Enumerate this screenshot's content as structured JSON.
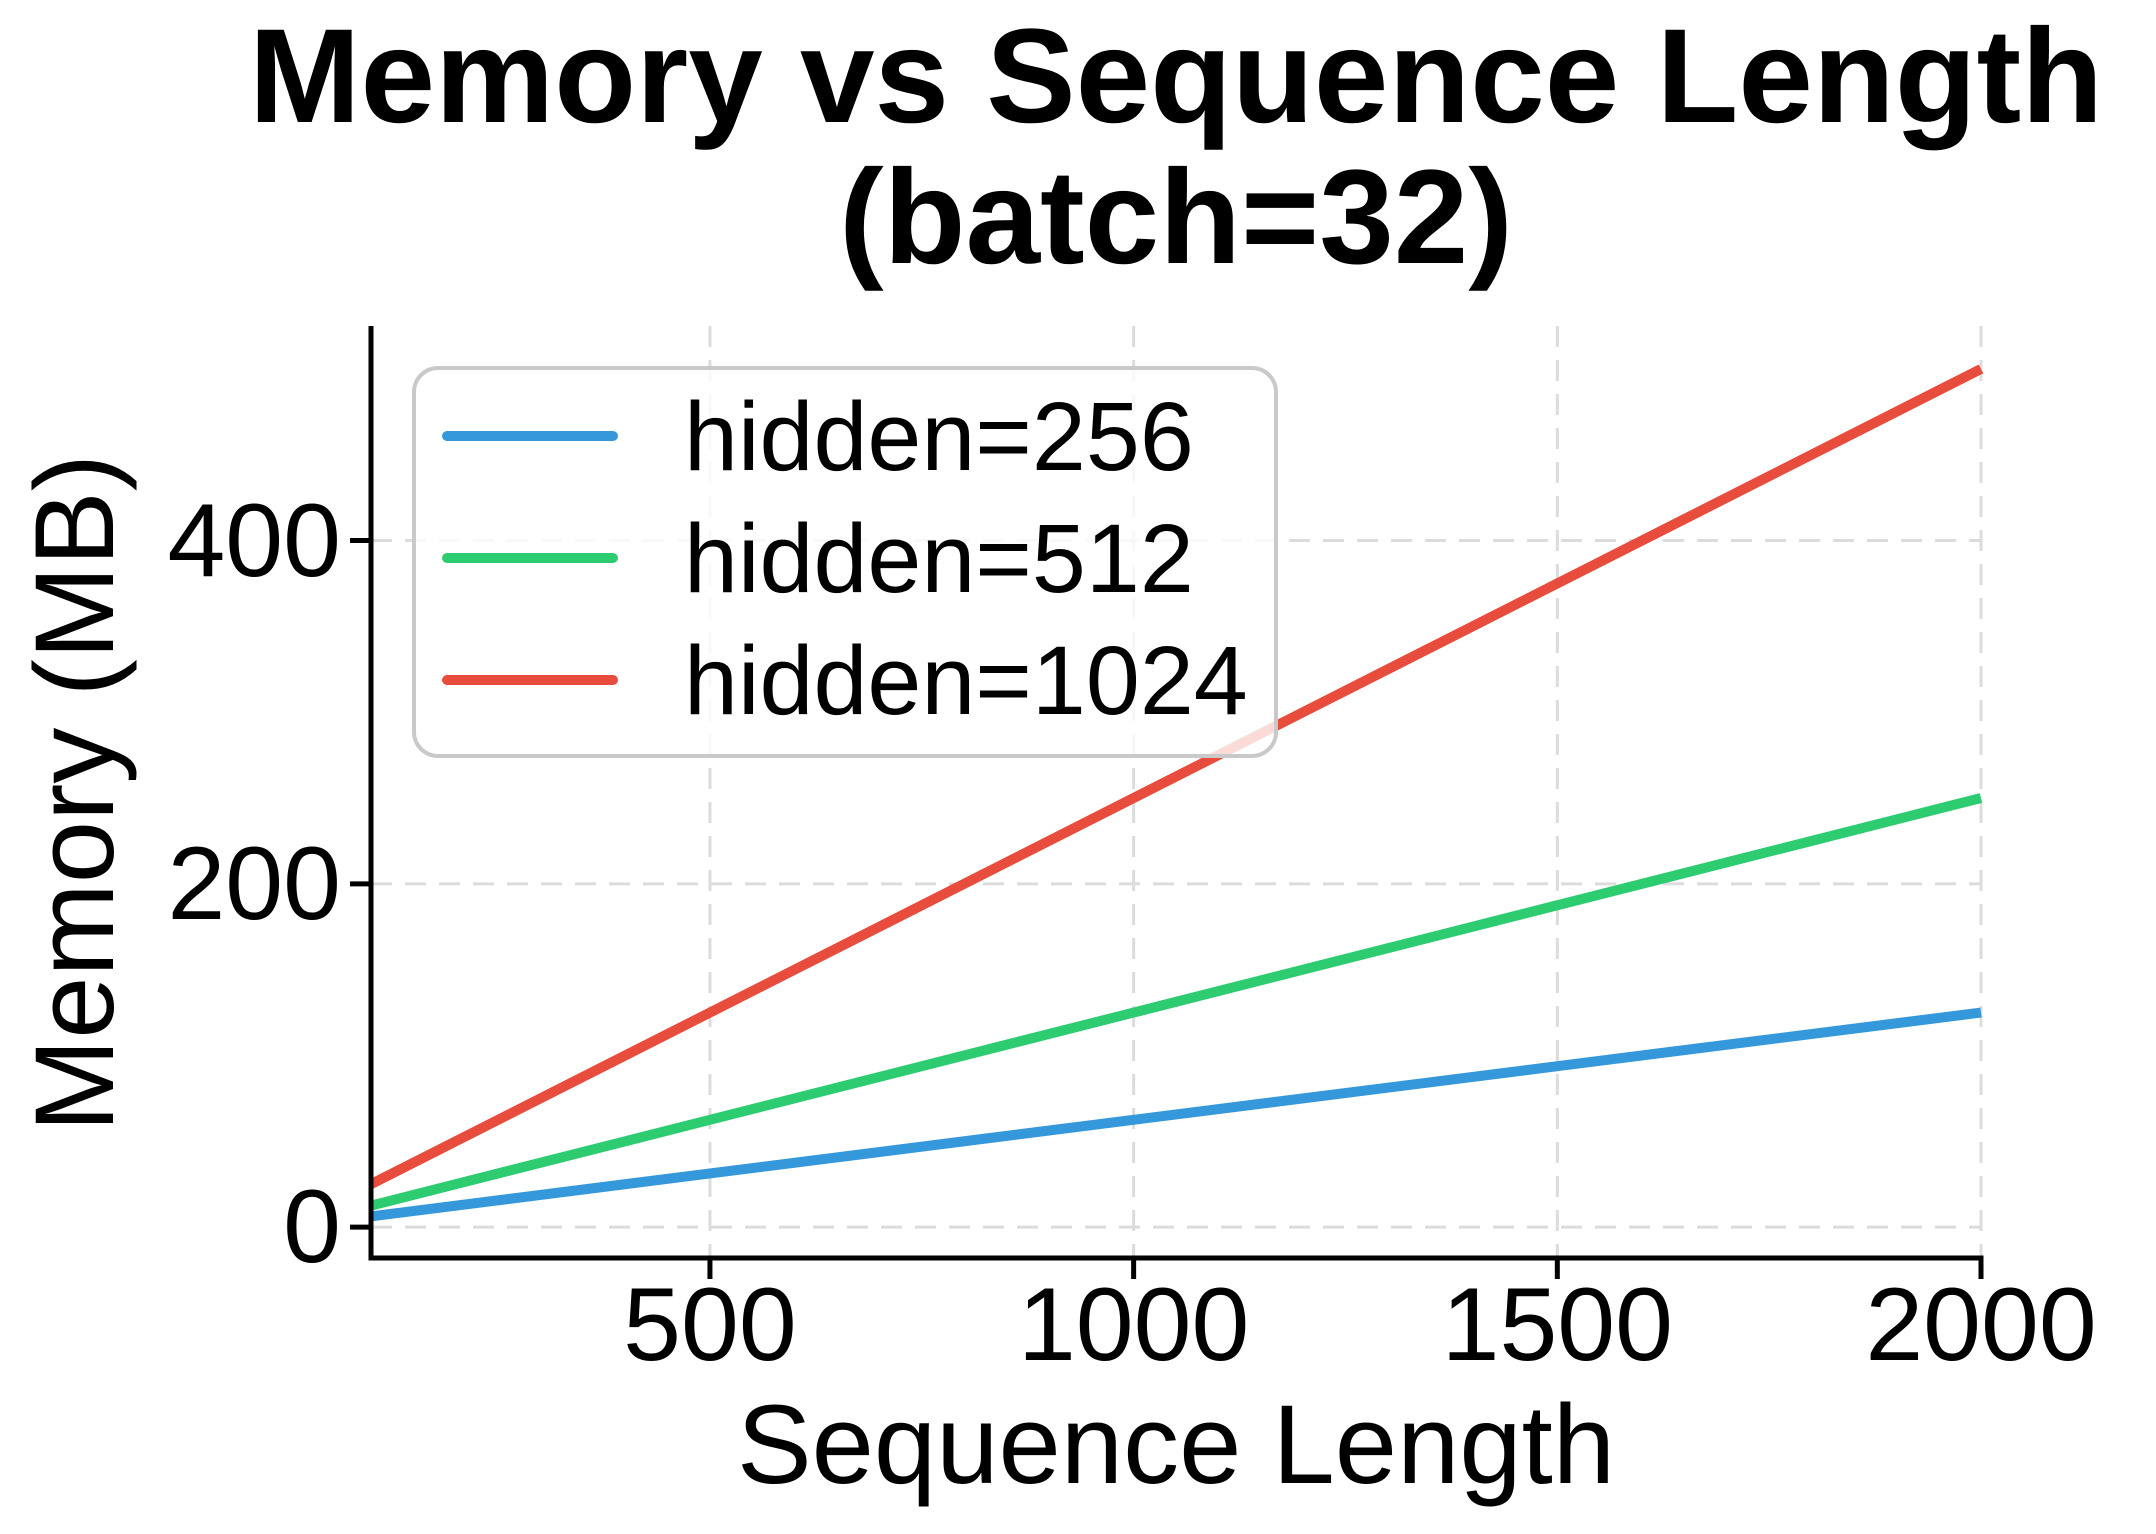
{
  "figure": {
    "title_line1": "Memory vs Sequence Length",
    "title_line2": "(batch=32)"
  },
  "chart_data": {
    "type": "line",
    "title": "Memory vs Sequence Length (batch=32)",
    "xlabel": "Sequence Length",
    "ylabel": "Memory (MB)",
    "x": [
      100,
      500,
      1000,
      1500,
      2000
    ],
    "series": [
      {
        "name": "hidden=256",
        "color": "#3498db",
        "values": [
          6.25,
          31.25,
          62.5,
          93.75,
          125
        ]
      },
      {
        "name": "hidden=512",
        "color": "#2ecc71",
        "values": [
          12.5,
          62.5,
          125,
          187.5,
          250
        ]
      },
      {
        "name": "hidden=1024",
        "color": "#e74c3c",
        "values": [
          25,
          125,
          250,
          375,
          500
        ]
      }
    ],
    "xticks": [
      500,
      1000,
      1500,
      2000
    ],
    "yticks": [
      0,
      200,
      400
    ],
    "xlim": [
      100,
      2000
    ],
    "ylim": [
      -18,
      525
    ],
    "grid": {
      "visible": true,
      "style": "dashed",
      "color": "#dcdcdc"
    },
    "legend": {
      "position": "upper-left",
      "border_color": "#c9c9c9"
    }
  },
  "style_colors": {
    "spine": "#000000",
    "tick": "#000000",
    "text": "#000000"
  }
}
